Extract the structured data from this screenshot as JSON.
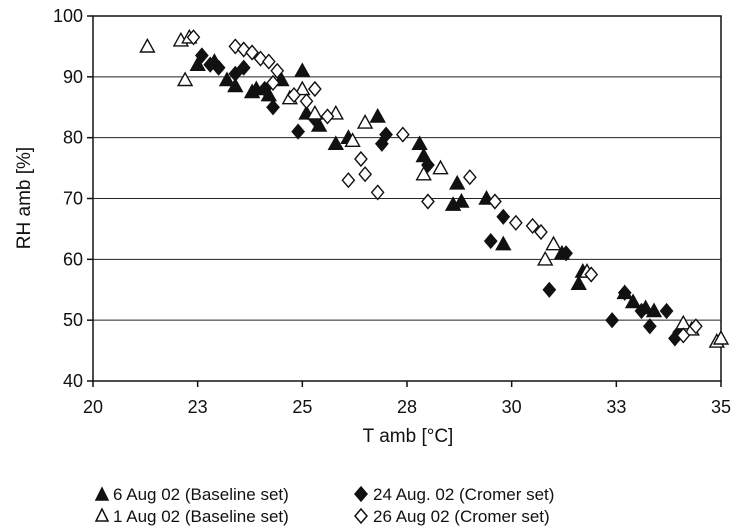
{
  "chart_data": {
    "type": "scatter",
    "title": "",
    "xlabel": "T amb [°C]",
    "ylabel": "RH amb [%]",
    "xlim": [
      20,
      35
    ],
    "ylim": [
      40,
      100
    ],
    "x_ticks": [
      "20",
      "23",
      "25",
      "28",
      "30",
      "33",
      "35"
    ],
    "y_ticks": [
      "40",
      "50",
      "60",
      "70",
      "80",
      "90",
      "100"
    ],
    "grid": "horizontal",
    "legend_position": "bottom",
    "series": [
      {
        "name": "6 Aug 02 (Baseline set)",
        "marker": "filled-triangle",
        "color": "#111111",
        "points": [
          [
            22.5,
            92
          ],
          [
            22.9,
            92.5
          ],
          [
            23.2,
            89.5
          ],
          [
            23.4,
            88.5
          ],
          [
            23.8,
            87.5
          ],
          [
            23.9,
            88
          ],
          [
            24.2,
            87
          ],
          [
            24.5,
            89.5
          ],
          [
            25.0,
            91
          ],
          [
            25.1,
            84
          ],
          [
            25.4,
            82
          ],
          [
            25.8,
            79
          ],
          [
            26.1,
            80
          ],
          [
            26.8,
            83.5
          ],
          [
            27.8,
            79
          ],
          [
            27.9,
            77
          ],
          [
            28.6,
            69
          ],
          [
            28.7,
            72.5
          ],
          [
            28.8,
            69.5
          ],
          [
            29.4,
            70
          ],
          [
            29.8,
            62.5
          ],
          [
            31.2,
            61
          ],
          [
            31.6,
            56
          ],
          [
            31.7,
            58
          ],
          [
            32.7,
            54.5
          ],
          [
            32.9,
            53
          ],
          [
            33.2,
            52
          ],
          [
            33.4,
            51.5
          ]
        ]
      },
      {
        "name": "24 Aug. 02 (Cromer set)",
        "marker": "filled-diamond",
        "color": "#111111",
        "points": [
          [
            22.6,
            93.5
          ],
          [
            22.8,
            92
          ],
          [
            23.0,
            91.5
          ],
          [
            23.4,
            90.5
          ],
          [
            23.6,
            91.5
          ],
          [
            24.1,
            88
          ],
          [
            24.3,
            85
          ],
          [
            24.9,
            81
          ],
          [
            25.3,
            83
          ],
          [
            26.9,
            79
          ],
          [
            27.0,
            80.5
          ],
          [
            28.0,
            75.5
          ],
          [
            29.5,
            63
          ],
          [
            29.8,
            67
          ],
          [
            30.9,
            55
          ],
          [
            31.3,
            61
          ],
          [
            32.4,
            50
          ],
          [
            32.7,
            54.5
          ],
          [
            33.1,
            51.5
          ],
          [
            33.3,
            49
          ],
          [
            33.7,
            51.5
          ],
          [
            33.9,
            47
          ],
          [
            34.0,
            48
          ]
        ]
      },
      {
        "name": "1 Aug 02 (Baseline set)",
        "marker": "open-triangle",
        "color": "#111111",
        "points": [
          [
            21.3,
            95
          ],
          [
            22.1,
            96
          ],
          [
            22.2,
            89.5
          ],
          [
            22.3,
            96.5
          ],
          [
            24.7,
            86.5
          ],
          [
            25.0,
            88
          ],
          [
            25.3,
            84
          ],
          [
            25.8,
            84
          ],
          [
            26.2,
            79.5
          ],
          [
            26.5,
            82.5
          ],
          [
            27.9,
            74
          ],
          [
            28.3,
            75
          ],
          [
            30.8,
            60
          ],
          [
            31.0,
            62.5
          ],
          [
            31.8,
            58
          ],
          [
            34.1,
            49.5
          ],
          [
            34.3,
            48.5
          ],
          [
            34.9,
            46.5
          ],
          [
            35.0,
            47
          ]
        ]
      },
      {
        "name": "26 Aug 02 (Cromer set)",
        "marker": "open-diamond",
        "color": "#111111",
        "points": [
          [
            22.4,
            96.5
          ],
          [
            23.4,
            95
          ],
          [
            23.6,
            94.5
          ],
          [
            23.8,
            94
          ],
          [
            24.0,
            93
          ],
          [
            24.2,
            92.5
          ],
          [
            24.3,
            89
          ],
          [
            24.4,
            91
          ],
          [
            24.8,
            87
          ],
          [
            25.1,
            86
          ],
          [
            25.3,
            88
          ],
          [
            25.6,
            83.5
          ],
          [
            26.1,
            73
          ],
          [
            26.4,
            76.5
          ],
          [
            26.5,
            74
          ],
          [
            26.8,
            71
          ],
          [
            27.4,
            80.5
          ],
          [
            28.0,
            69.5
          ],
          [
            29.0,
            73.5
          ],
          [
            29.6,
            69.5
          ],
          [
            30.1,
            66
          ],
          [
            30.5,
            65.5
          ],
          [
            30.7,
            64.5
          ],
          [
            31.9,
            57.5
          ],
          [
            34.1,
            47.5
          ],
          [
            34.4,
            49
          ]
        ]
      }
    ]
  }
}
